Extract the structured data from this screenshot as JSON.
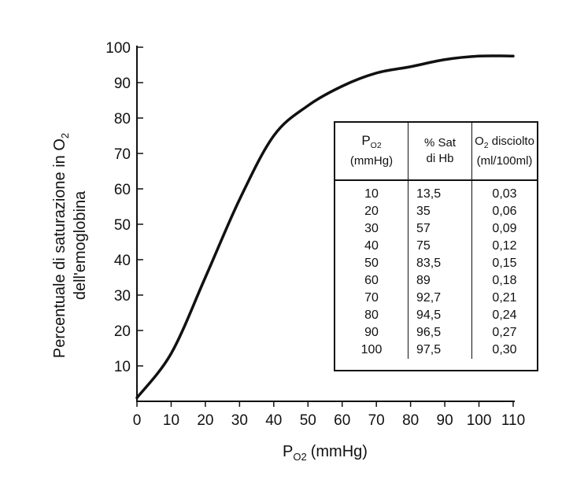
{
  "chart_data": {
    "type": "line",
    "xlabel": "P",
    "xlabel_sub": "O2",
    "xlabel_unit": "(mmHg)",
    "ylabel_line1": "Percentuale di saturazione in O",
    "ylabel_line1_sub": "2",
    "ylabel_line2": "dell'emoglobina",
    "xlim": [
      0,
      110
    ],
    "ylim": [
      0,
      100
    ],
    "x_ticks": [
      "0",
      "10",
      "20",
      "30",
      "40",
      "50",
      "60",
      "70",
      "80",
      "90",
      "100",
      "110"
    ],
    "y_ticks": [
      "10",
      "20",
      "30",
      "40",
      "50",
      "60",
      "70",
      "80",
      "90",
      "100"
    ],
    "grid": false,
    "series": [
      {
        "x": [
          0,
          10,
          20,
          30,
          40,
          50,
          60,
          70,
          80,
          90,
          100,
          110
        ],
        "y": [
          1,
          13.5,
          35,
          57,
          75,
          83.5,
          89,
          92.7,
          94.5,
          96.5,
          97.5,
          97.5
        ]
      }
    ],
    "table": {
      "header_col1_main": "P",
      "header_col1_sub": "O2",
      "header_col1_unit": "(mmHg)",
      "header_col2_line1": "% Sat",
      "header_col2_line2": "di Hb",
      "header_col3_main": "O",
      "header_col3_sub": "2",
      "header_col3_rest": " disciolto",
      "header_col3_line2": "(ml/100ml)",
      "rows": [
        [
          "10",
          "13,5",
          "0,03"
        ],
        [
          "20",
          "35",
          "0,06"
        ],
        [
          "30",
          "57",
          "0,09"
        ],
        [
          "40",
          "75",
          "0,12"
        ],
        [
          "50",
          "83,5",
          "0,15"
        ],
        [
          "60",
          "89",
          "0,18"
        ],
        [
          "70",
          "92,7",
          "0,21"
        ],
        [
          "80",
          "94,5",
          "0,24"
        ],
        [
          "90",
          "96,5",
          "0,27"
        ],
        [
          "100",
          "97,5",
          "0,30"
        ]
      ]
    }
  }
}
